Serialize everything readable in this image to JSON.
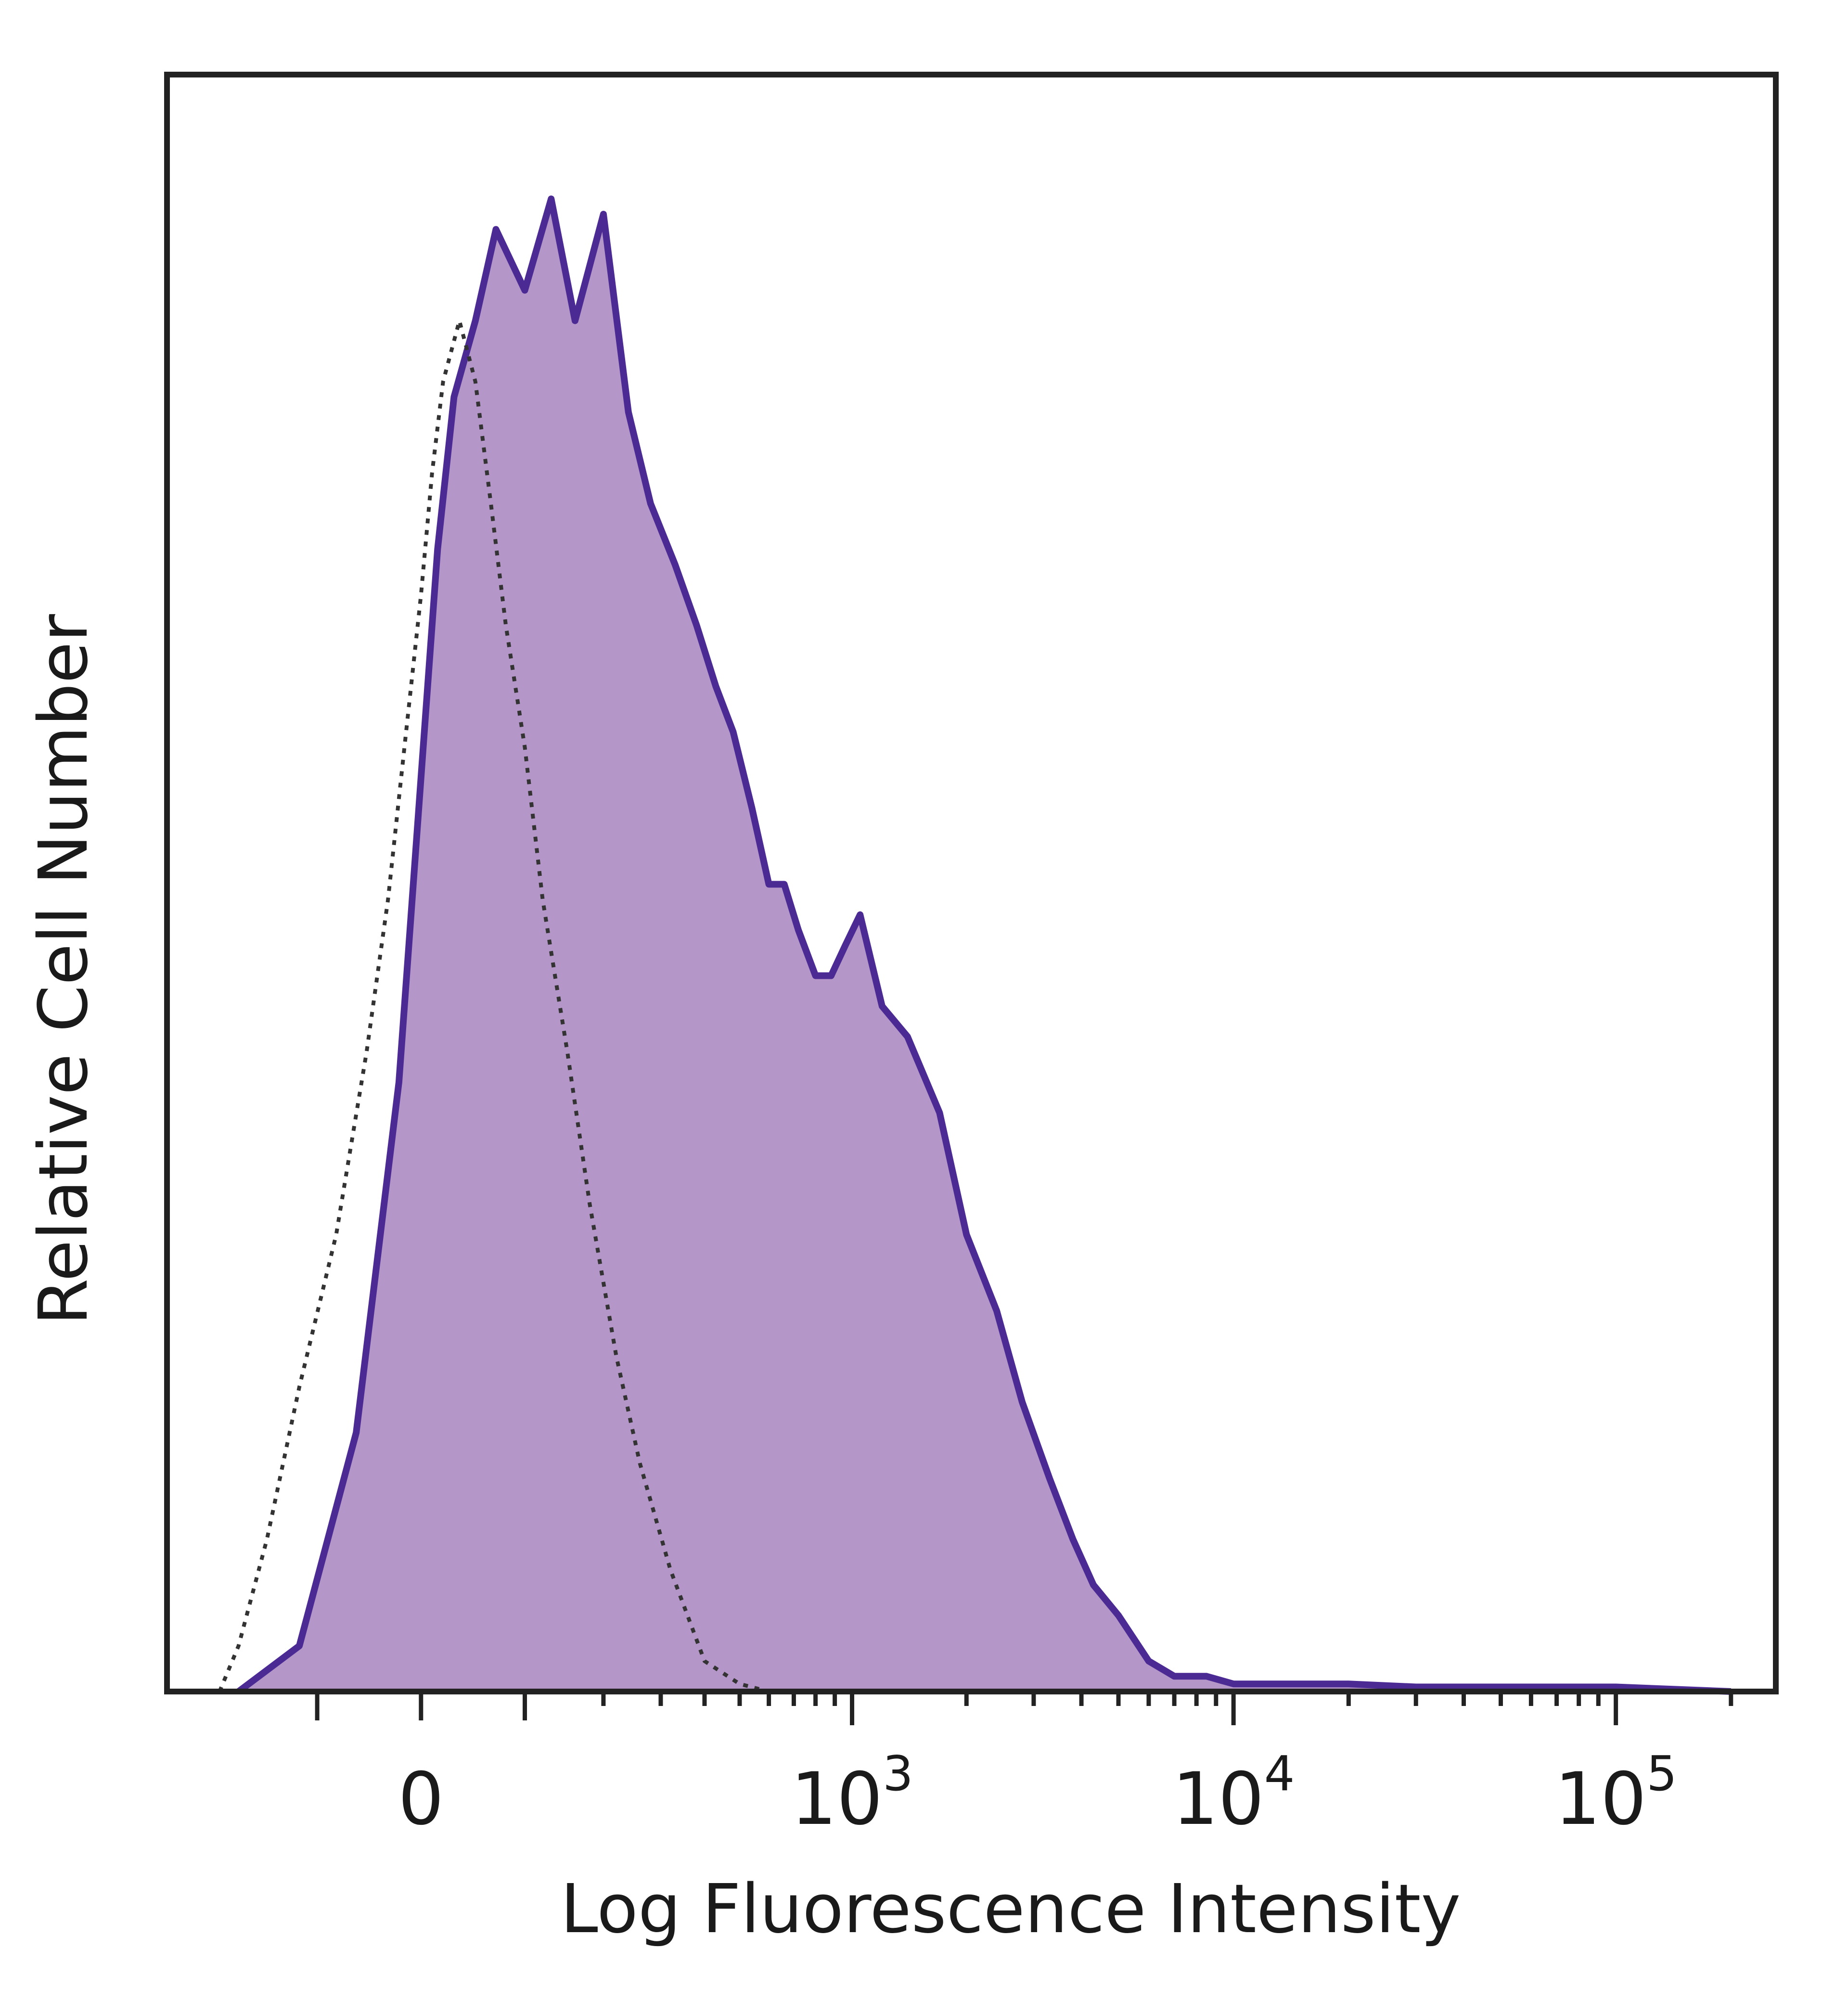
{
  "chart_data": {
    "type": "area",
    "title": "",
    "xlabel": "Log Fluorescence Intensity",
    "ylabel": "Relative Cell Number",
    "x_scale": "biexponential",
    "ylim": [
      0,
      100
    ],
    "grid": false,
    "legend": "none",
    "x_ticks": [
      {
        "value": 0,
        "base": "0",
        "exp": ""
      },
      {
        "value": 1000,
        "base": "10",
        "exp": "3"
      },
      {
        "value": 10000,
        "base": "10",
        "exp": "4"
      },
      {
        "value": 100000,
        "base": "10",
        "exp": "5"
      }
    ],
    "colors": {
      "stained_line": "#4b2a93",
      "stained_fill": "#b497c8",
      "control_line": "#333333",
      "frame": "#222222"
    },
    "series": [
      {
        "style": "filled",
        "x": [
          -200,
          -120,
          -60,
          -20,
          0,
          15,
          30,
          50,
          70,
          100,
          130,
          160,
          200,
          240,
          280,
          330,
          380,
          430,
          480,
          540,
          600,
          660,
          720,
          800,
          880,
          960,
          1050,
          1200,
          1400,
          1700,
          2000,
          2400,
          2800,
          3300,
          3800,
          4300,
          5000,
          6000,
          7000,
          8500,
          10000,
          15000,
          20000,
          30000,
          50000,
          100000,
          200000
        ],
        "y": [
          0,
          3,
          17,
          40,
          60,
          75,
          85,
          90,
          96,
          92,
          98,
          90,
          97,
          84,
          78,
          74,
          70,
          66,
          63,
          58,
          53,
          53,
          50,
          47,
          47,
          49,
          51,
          45,
          43,
          38,
          30,
          25,
          19,
          14,
          10,
          7,
          5,
          2,
          1,
          1,
          0.5,
          0.5,
          0.5,
          0.3,
          0.3,
          0.3,
          0
        ]
      },
      {
        "style": "dotted",
        "x": [
          -230,
          -200,
          -160,
          -120,
          -80,
          -50,
          -30,
          -15,
          0,
          10,
          20,
          35,
          50,
          65,
          80,
          100,
          120,
          150,
          180,
          220,
          260,
          320,
          400,
          500,
          600
        ],
        "y": [
          0,
          3,
          10,
          20,
          30,
          42,
          52,
          62,
          72,
          80,
          86,
          90,
          86,
          78,
          70,
          62,
          52,
          42,
          32,
          22,
          15,
          8,
          2,
          0.5,
          0
        ]
      }
    ]
  }
}
